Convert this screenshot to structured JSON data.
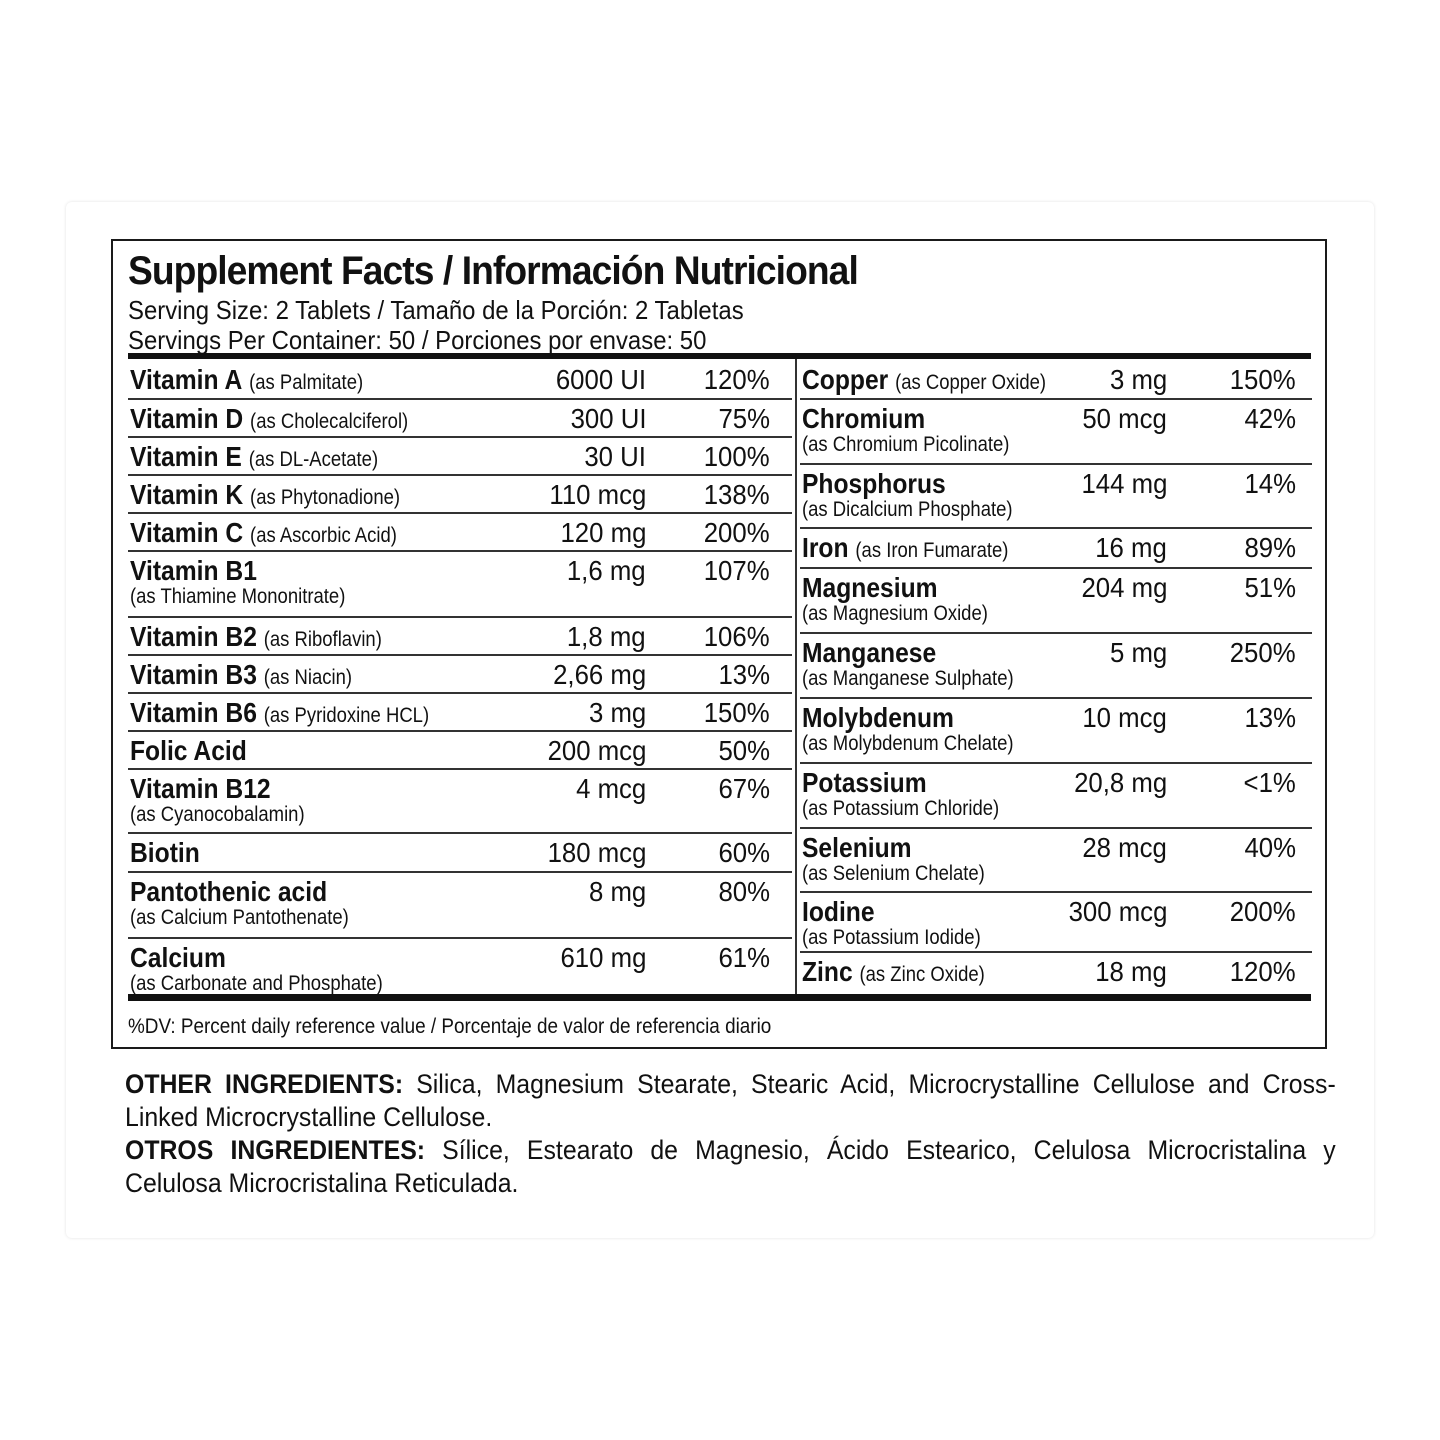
{
  "header": {
    "title": "Supplement Facts / Información Nutricional",
    "serving_size": "Serving Size: 2 Tablets / Tamaño de la Porción: 2 Tabletas",
    "servings_per_container": "Servings Per Container: 50 / Porciones por envase: 50"
  },
  "left_rows": [
    {
      "name": "Vitamin A",
      "inline_source": "(as Palmitate)",
      "amount": "6000 UI",
      "dv": "120%"
    },
    {
      "name": "Vitamin D",
      "inline_source": "(as Cholecalciferol)",
      "amount": "300 UI",
      "dv": "75%"
    },
    {
      "name": "Vitamin E",
      "inline_source": "(as DL-Acetate)",
      "amount": "30 UI",
      "dv": "100%"
    },
    {
      "name": "Vitamin K",
      "inline_source": "(as Phytonadione)",
      "amount": "110 mcg",
      "dv": "138%"
    },
    {
      "name": "Vitamin C",
      "inline_source": "(as Ascorbic Acid)",
      "amount": "120 mg",
      "dv": "200%"
    },
    {
      "name": "Vitamin B1",
      "source": "(as Thiamine Mononitrate)",
      "amount": "1,6 mg",
      "dv": "107%"
    },
    {
      "name": "Vitamin B2",
      "inline_source": "(as Riboflavin)",
      "amount": "1,8 mg",
      "dv": "106%"
    },
    {
      "name": "Vitamin B3",
      "inline_source": "(as Niacin)",
      "amount": "2,66 mg",
      "dv": "13%"
    },
    {
      "name": "Vitamin B6",
      "inline_source": "(as Pyridoxine HCL)",
      "amount": "3 mg",
      "dv": "150%"
    },
    {
      "name": "Folic Acid",
      "amount": "200 mcg",
      "dv": "50%"
    },
    {
      "name": "Vitamin B12",
      "source": "(as Cyanocobalamin)",
      "amount": "4 mcg",
      "dv": "67%"
    },
    {
      "name": "Biotin",
      "amount": "180 mcg",
      "dv": "60%"
    },
    {
      "name": "Pantothenic acid",
      "source": "(as Calcium Pantothenate)",
      "amount": "8 mg",
      "dv": "80%"
    },
    {
      "name": "Calcium",
      "source": "(as Carbonate and Phosphate)",
      "amount": "610 mg",
      "dv": "61%"
    }
  ],
  "right_rows": [
    {
      "name": "Copper",
      "inline_source": "(as Copper Oxide)",
      "amount": "3 mg",
      "dv": "150%"
    },
    {
      "name": "Chromium",
      "source": "(as Chromium Picolinate)",
      "amount": "50 mcg",
      "dv": "42%"
    },
    {
      "name": "Phosphorus",
      "source": "(as Dicalcium Phosphate)",
      "amount": "144 mg",
      "dv": "14%"
    },
    {
      "name": "Iron",
      "inline_source": "(as Iron Fumarate)",
      "amount": "16 mg",
      "dv": "89%"
    },
    {
      "name": "Magnesium",
      "source": "(as Magnesium Oxide)",
      "amount": "204 mg",
      "dv": "51%"
    },
    {
      "name": "Manganese",
      "source": "(as Manganese Sulphate)",
      "amount": "5 mg",
      "dv": "250%"
    },
    {
      "name": "Molybdenum",
      "source": "(as Molybdenum Chelate)",
      "amount": "10 mcg",
      "dv": "13%"
    },
    {
      "name": "Potassium",
      "source": "(as Potassium Chloride)",
      "amount": "20,8 mg",
      "dv": "<1%"
    },
    {
      "name": "Selenium",
      "source": "(as Selenium Chelate)",
      "amount": "28 mcg",
      "dv": "40%"
    },
    {
      "name": "Iodine",
      "source": "(as Potassium Iodide)",
      "amount": "300 mcg",
      "dv": "200%"
    },
    {
      "name": "Zinc",
      "inline_source": "(as Zinc Oxide)",
      "amount": "18 mg",
      "dv": "120%"
    }
  ],
  "footnote": "%DV: Percent daily reference value / Porcentaje de valor de referencia diario",
  "ingredients": {
    "en_label": "OTHER INGREDIENTS:",
    "en_text": " Silica, Magnesium Stearate, Stearic Acid, Microcrystalline Cellulose and Cross-Linked Microcrystalline Cellulose.",
    "es_label": "OTROS INGREDIENTES:",
    "es_text": " Sílice, Estearato de Magnesio, Ácido Estearico, Celulosa Microcristalina y Celulosa Microcristalina Reticulada."
  }
}
